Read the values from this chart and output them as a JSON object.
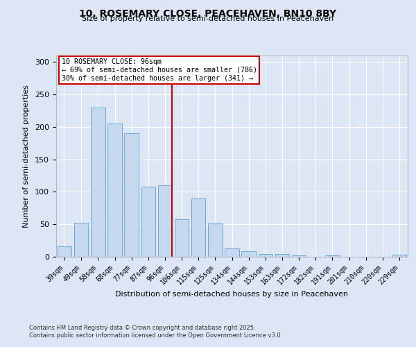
{
  "title_line1": "10, ROSEMARY CLOSE, PEACEHAVEN, BN10 8BY",
  "title_line2": "Size of property relative to semi-detached houses in Peacehaven",
  "xlabel": "Distribution of semi-detached houses by size in Peacehaven",
  "ylabel": "Number of semi-detached properties",
  "categories": [
    "39sqm",
    "49sqm",
    "58sqm",
    "68sqm",
    "77sqm",
    "87sqm",
    "96sqm",
    "106sqm",
    "115sqm",
    "125sqm",
    "134sqm",
    "144sqm",
    "153sqm",
    "163sqm",
    "172sqm",
    "182sqm",
    "191sqm",
    "201sqm",
    "210sqm",
    "220sqm",
    "229sqm"
  ],
  "values": [
    16,
    52,
    230,
    205,
    190,
    108,
    110,
    58,
    90,
    51,
    13,
    9,
    4,
    4,
    2,
    0,
    2,
    0,
    0,
    0,
    3
  ],
  "bar_color": "#c5d8f0",
  "bar_edge_color": "#6aaad4",
  "highlight_index": 6,
  "red_line_color": "#cc0000",
  "annotation_title": "10 ROSEMARY CLOSE: 96sqm",
  "annotation_line1": "← 69% of semi-detached houses are smaller (786)",
  "annotation_line2": "30% of semi-detached houses are larger (341) →",
  "annotation_box_color": "#ffffff",
  "annotation_box_edge": "#cc0000",
  "ylim": [
    0,
    310
  ],
  "yticks": [
    0,
    50,
    100,
    150,
    200,
    250,
    300
  ],
  "background_color": "#dce6f5",
  "grid_color": "#ffffff",
  "footer_line1": "Contains HM Land Registry data © Crown copyright and database right 2025.",
  "footer_line2": "Contains public sector information licensed under the Open Government Licence v3.0."
}
